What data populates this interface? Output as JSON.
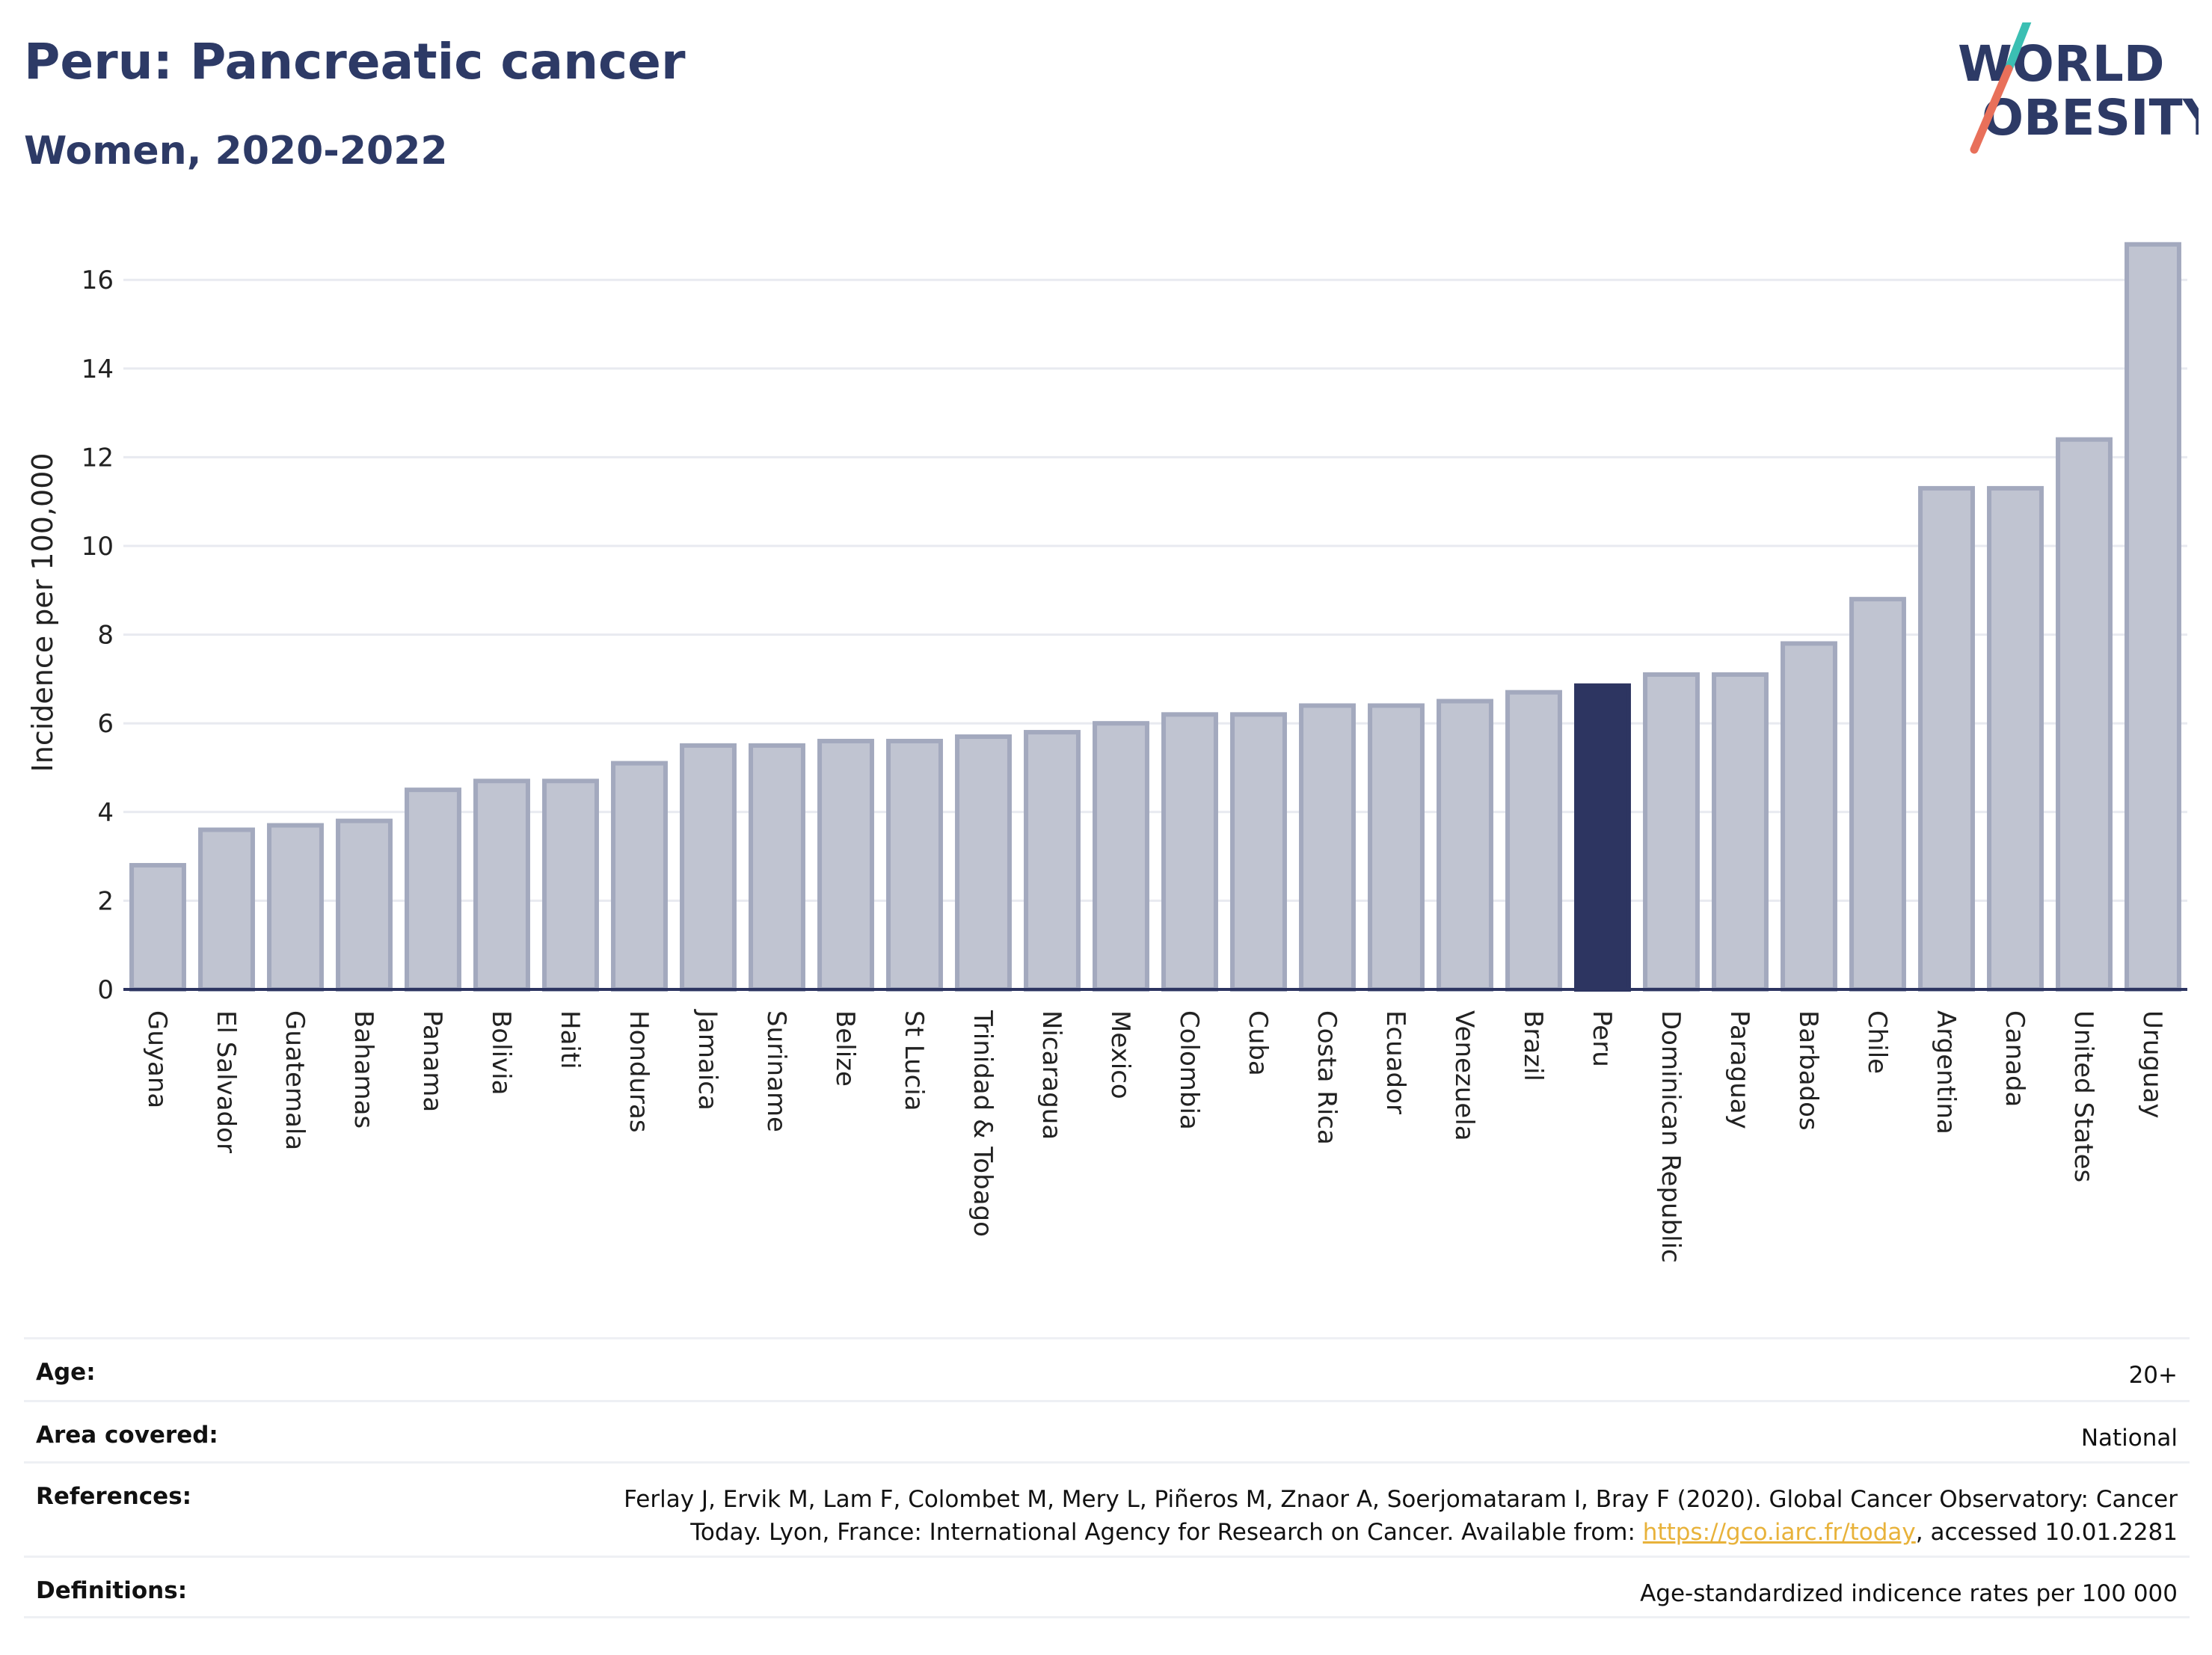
{
  "header": {
    "title": "Peru: Pancreatic cancer",
    "subtitle": "Women, 2020-2022"
  },
  "logo": {
    "line1": "WORLD",
    "line2": "OBESITY",
    "text_color": "#2d3a66",
    "slash_color_top": "#3bbfb3",
    "slash_color_bottom": "#e8705a"
  },
  "chart_data": {
    "type": "bar",
    "title": "Peru: Pancreatic cancer",
    "subtitle": "Women, 2020-2022",
    "xlabel": "",
    "ylabel": "Incidence per 100,000",
    "ylim": [
      0,
      17
    ],
    "yticks": [
      0,
      2,
      4,
      6,
      8,
      10,
      12,
      14,
      16
    ],
    "grid": true,
    "legend": "none",
    "highlight": "Peru",
    "colors": {
      "bar": "#c0c4d1",
      "bar_border": "#a3a9be",
      "highlight": "#2d3561",
      "axis": "#2d3561",
      "grid": "#e8eaf0"
    },
    "categories": [
      "Guyana",
      "El Salvador",
      "Guatemala",
      "Bahamas",
      "Panama",
      "Bolivia",
      "Haiti",
      "Honduras",
      "Jamaica",
      "Suriname",
      "Belize",
      "St Lucia",
      "Trinidad & Tobago",
      "Nicaragua",
      "Mexico",
      "Colombia",
      "Cuba",
      "Costa Rica",
      "Ecuador",
      "Venezuela",
      "Brazil",
      "Peru",
      "Dominican Republic",
      "Paraguay",
      "Barbados",
      "Chile",
      "Argentina",
      "Canada",
      "United States",
      "Uruguay"
    ],
    "values": [
      2.8,
      3.6,
      3.7,
      3.8,
      4.5,
      4.7,
      4.7,
      5.1,
      5.5,
      5.5,
      5.6,
      5.6,
      5.7,
      5.8,
      6.0,
      6.2,
      6.2,
      6.4,
      6.4,
      6.5,
      6.7,
      6.85,
      7.1,
      7.1,
      7.8,
      8.8,
      11.3,
      11.3,
      12.4,
      16.8
    ]
  },
  "meta": {
    "age_label": "Age:",
    "age_value": "20+",
    "area_label": "Area covered:",
    "area_value": "National",
    "references_label": "References:",
    "references_line1": "Ferlay J, Ervik M, Lam F, Colombet M, Mery L, Piñeros M, Znaor A, Soerjomataram I, Bray F (2020). Global Cancer Observatory: Cancer",
    "references_line2_pre": "Today. Lyon, France: International Agency for Research on Cancer. Available from: ",
    "references_link": "https://gco.iarc.fr/today",
    "references_line2_post": ", accessed 10.01.2281",
    "definitions_label": "Definitions:",
    "definitions_value": "Age-standardized indicence rates per 100 000"
  }
}
